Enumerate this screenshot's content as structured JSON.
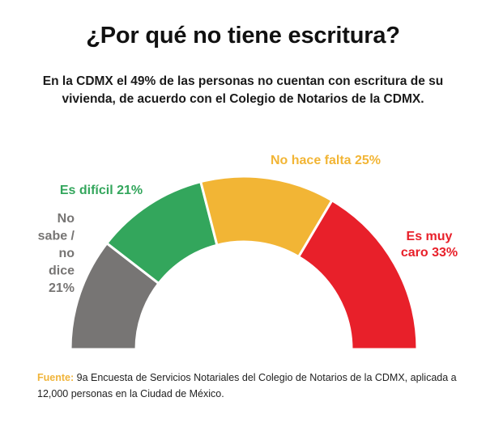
{
  "title": "¿Por qué no tiene escritura?",
  "subtitle": "En la CDMX el 49% de las personas no cuentan con escritura de su vivienda, de acuerdo con el Colegio de Notarios de la CDMX.",
  "chart_data": {
    "type": "pie",
    "shape": "half-donut",
    "categories": [
      "No sabe / no dice",
      "Es difícil",
      "No hace falta",
      "Es muy caro"
    ],
    "values": [
      21,
      21,
      25,
      33
    ],
    "unit": "%",
    "labels": [
      {
        "lines": [
          "No",
          "sabe /",
          "no",
          "dice",
          "21%"
        ],
        "color": "#777574"
      },
      {
        "lines": [
          "Es difícil 21%"
        ],
        "color": "#33a65c"
      },
      {
        "lines": [
          "No hace falta 25%"
        ],
        "color": "#f2b535"
      },
      {
        "lines": [
          "Es muy",
          "caro 33%"
        ],
        "color": "#e8202a"
      }
    ],
    "colors": [
      "#777574",
      "#33a65c",
      "#f2b535",
      "#e8202a"
    ]
  },
  "source": {
    "label": "Fuente:",
    "text": " 9a Encuesta de Servicios Notariales del Colegio de Notarios de la CDMX, aplicada a 12,000 personas en la Ciudad de México."
  }
}
